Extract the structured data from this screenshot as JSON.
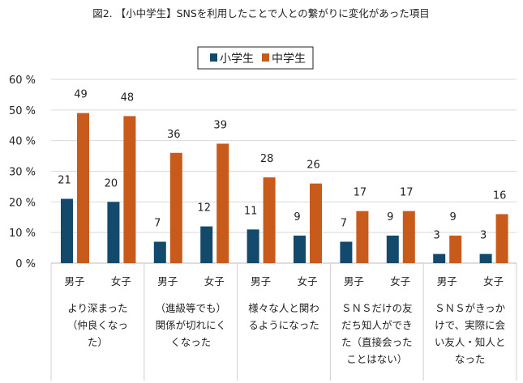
{
  "chart_data": {
    "type": "bar",
    "title": "図2. 【小中学生】SNSを利用したことで人との繋がりに変化があった項目",
    "ylim": [
      0,
      60
    ],
    "yticks": [
      "0 %",
      "10 %",
      "20 %",
      "30 %",
      "40 %",
      "50 %",
      "60 %"
    ],
    "grid": true,
    "legend_placement": "top-center",
    "groups": [
      "より深まった（仲良くなった）",
      "（進級等でも）関係が切れにくくなった",
      "様々な人と関わるようになった",
      "ＳＮＳだけの友だち知人ができた（直接会ったことはない）",
      "ＳＮＳがきっかけで、実際に会い友人・知人となった"
    ],
    "group_label_lines": [
      [
        "より深まった",
        "（仲良くなっ",
        "た）"
      ],
      [
        "（進級等でも）",
        "関係が切れにく",
        "くなった"
      ],
      [
        "様々な人と関わ",
        "るようになった"
      ],
      [
        "ＳＮＳだけの友",
        "だち知人ができ",
        "た（直接会った",
        "ことはない）"
      ],
      [
        "ＳＮＳがきっか",
        "けで、実際に会",
        "い友人・知人と",
        "なった"
      ]
    ],
    "subcategories": [
      "男子",
      "女子"
    ],
    "series": [
      {
        "name": "小学生",
        "color": "#134a6b",
        "values": [
          [
            21,
            20
          ],
          [
            7,
            12
          ],
          [
            11,
            9
          ],
          [
            7,
            9
          ],
          [
            3,
            3
          ]
        ]
      },
      {
        "name": "中学生",
        "color": "#c85a1c",
        "values": [
          [
            49,
            48
          ],
          [
            36,
            39
          ],
          [
            28,
            26
          ],
          [
            17,
            17
          ],
          [
            9,
            16
          ]
        ]
      }
    ]
  }
}
